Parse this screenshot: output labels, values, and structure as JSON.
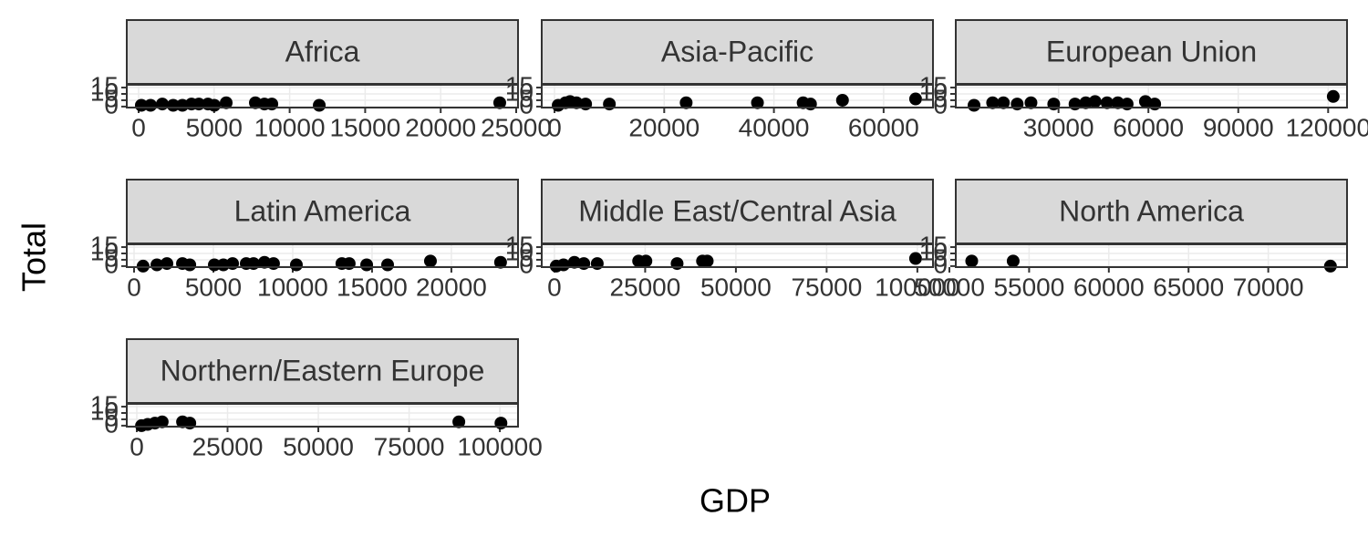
{
  "axis_labels": {
    "x": "GDP",
    "y": "Total"
  },
  "chart_data": [
    {
      "type": "scatter",
      "title": "Africa",
      "color": "#000000",
      "x": [
        180,
        790,
        1570,
        2290,
        2900,
        3500,
        3990,
        4590,
        5010,
        5800,
        7730,
        8330,
        8820,
        11960,
        23910
      ],
      "values": [
        1,
        1,
        2,
        1,
        1,
        2,
        2,
        2,
        1,
        3,
        3,
        2,
        2,
        1,
        3
      ],
      "xlim": [
        -785,
        25120
      ],
      "xticks": [
        0,
        5000,
        10000,
        15000,
        20000,
        25000
      ],
      "ylim": [
        -0.8,
        17.2
      ],
      "yticks": [
        0,
        5,
        10,
        15
      ],
      "grid": true
    },
    {
      "type": "scatter",
      "title": "Asia-Pacific",
      "color": "#000000",
      "x": [
        670,
        2000,
        2830,
        4000,
        5670,
        10000,
        24000,
        37000,
        45330,
        46670,
        52500,
        65830
      ],
      "values": [
        1,
        3,
        4,
        3,
        2,
        2,
        3,
        3,
        3,
        2,
        5,
        6
      ],
      "xlim": [
        -2333,
        69000
      ],
      "xticks": [
        0,
        20000,
        40000,
        60000
      ],
      "ylim": [
        -0.8,
        17.2
      ],
      "yticks": [
        0,
        5,
        10,
        15
      ],
      "grid": true
    },
    {
      "type": "scatter",
      "title": "European Union",
      "color": "#000000",
      "x": [
        1800,
        8000,
        11600,
        16200,
        20800,
        28400,
        35500,
        39100,
        42200,
        46200,
        49800,
        52900,
        59000,
        62100,
        121700
      ],
      "values": [
        1,
        3,
        3,
        2,
        3,
        2,
        2,
        3,
        4,
        3,
        3,
        2,
        4,
        2,
        8
      ],
      "xlim": [
        -4300,
        126300
      ],
      "xticks": [
        30000,
        60000,
        90000,
        120000
      ],
      "ylim": [
        -0.8,
        17.2
      ],
      "yticks": [
        0,
        5,
        10,
        15
      ],
      "grid": true
    },
    {
      "type": "scatter",
      "title": "Latin America",
      "color": "#000000",
      "x": [
        570,
        1440,
        2070,
        3050,
        3510,
        5060,
        5630,
        6210,
        7070,
        7530,
        8220,
        8790,
        10230,
        13100,
        13560,
        14660,
        15980,
        18680,
        23100
      ],
      "values": [
        0,
        1,
        2,
        2,
        1,
        1,
        1,
        2,
        2,
        2,
        3,
        2,
        1,
        2,
        2,
        1,
        1,
        4,
        3
      ],
      "xlim": [
        -460,
        24200
      ],
      "xticks": [
        0,
        5000,
        10000,
        15000,
        20000
      ],
      "ylim": [
        -0.8,
        17.2
      ],
      "yticks": [
        0,
        5,
        10,
        15
      ],
      "grid": true
    },
    {
      "type": "scatter",
      "title": "Middle East/Central Asia",
      "color": "#000000",
      "x": [
        500,
        2500,
        5500,
        8100,
        11800,
        23200,
        25200,
        33800,
        40800,
        42100,
        99500
      ],
      "values": [
        0,
        1,
        3,
        2,
        2,
        4,
        4,
        2,
        4,
        4,
        6
      ],
      "xlim": [
        -3500,
        104300
      ],
      "xticks": [
        0,
        25000,
        50000,
        75000,
        100000
      ],
      "ylim": [
        -0.8,
        17.2
      ],
      "yticks": [
        0,
        5,
        10,
        15
      ],
      "grid": true
    },
    {
      "type": "scatter",
      "title": "North America",
      "color": "#000000",
      "x": [
        51400,
        54000,
        73900
      ],
      "values": [
        4,
        4,
        0
      ],
      "xlim": [
        50400,
        74940
      ],
      "xticks": [
        50000,
        55000,
        60000,
        65000,
        70000
      ],
      "ylim": [
        -0.8,
        17.2
      ],
      "yticks": [
        0,
        5,
        10,
        15
      ],
      "grid": true
    },
    {
      "type": "scatter",
      "title": "Northern/Eastern Europe",
      "color": "#000000",
      "x": [
        1300,
        3000,
        5000,
        7000,
        12600,
        14600,
        88700,
        100300
      ],
      "values": [
        0,
        1,
        2,
        3,
        3,
        2,
        3,
        2
      ],
      "xlim": [
        -2760,
        105000
      ],
      "xticks": [
        0,
        25000,
        50000,
        75000,
        100000
      ],
      "ylim": [
        -0.8,
        17.2
      ],
      "yticks": [
        0,
        5,
        10,
        15
      ],
      "grid": true
    }
  ]
}
